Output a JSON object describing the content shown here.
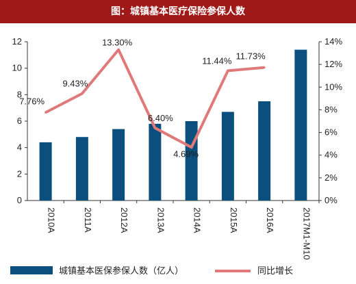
{
  "title": "图：城镇基本医疗保险参保人数",
  "colors": {
    "title_bg": "#a01919",
    "bar": "#0b4f7f",
    "line": "#e07a7a"
  },
  "chart_data": {
    "type": "bar",
    "categories": [
      "2010A",
      "2011A",
      "2012A",
      "2013A",
      "2014A",
      "2015A",
      "2016A",
      "2017M1-M10"
    ],
    "series": [
      {
        "name": "城镇基本医保参保人数（亿人）",
        "type": "bar",
        "axis": "left",
        "values": [
          4.4,
          4.8,
          5.4,
          5.8,
          6.0,
          6.7,
          7.5,
          11.4
        ]
      },
      {
        "name": "同比增长",
        "type": "line",
        "axis": "right",
        "values": [
          7.76,
          9.43,
          13.3,
          6.4,
          4.69,
          11.44,
          11.73,
          null
        ],
        "data_labels": [
          "7.76%",
          "9.43%",
          "13.30%",
          "6.40%",
          "4.69%",
          "11.44%",
          "11.73%",
          ""
        ]
      }
    ],
    "ylim_left": [
      0,
      12
    ],
    "yticks_left": [
      "0",
      "2",
      "4",
      "6",
      "8",
      "10",
      "12"
    ],
    "ylim_right": [
      0,
      14
    ],
    "yticks_right": [
      "0%",
      "2%",
      "4%",
      "6%",
      "8%",
      "10%",
      "12%",
      "14%"
    ],
    "legend_position": "bottom"
  }
}
